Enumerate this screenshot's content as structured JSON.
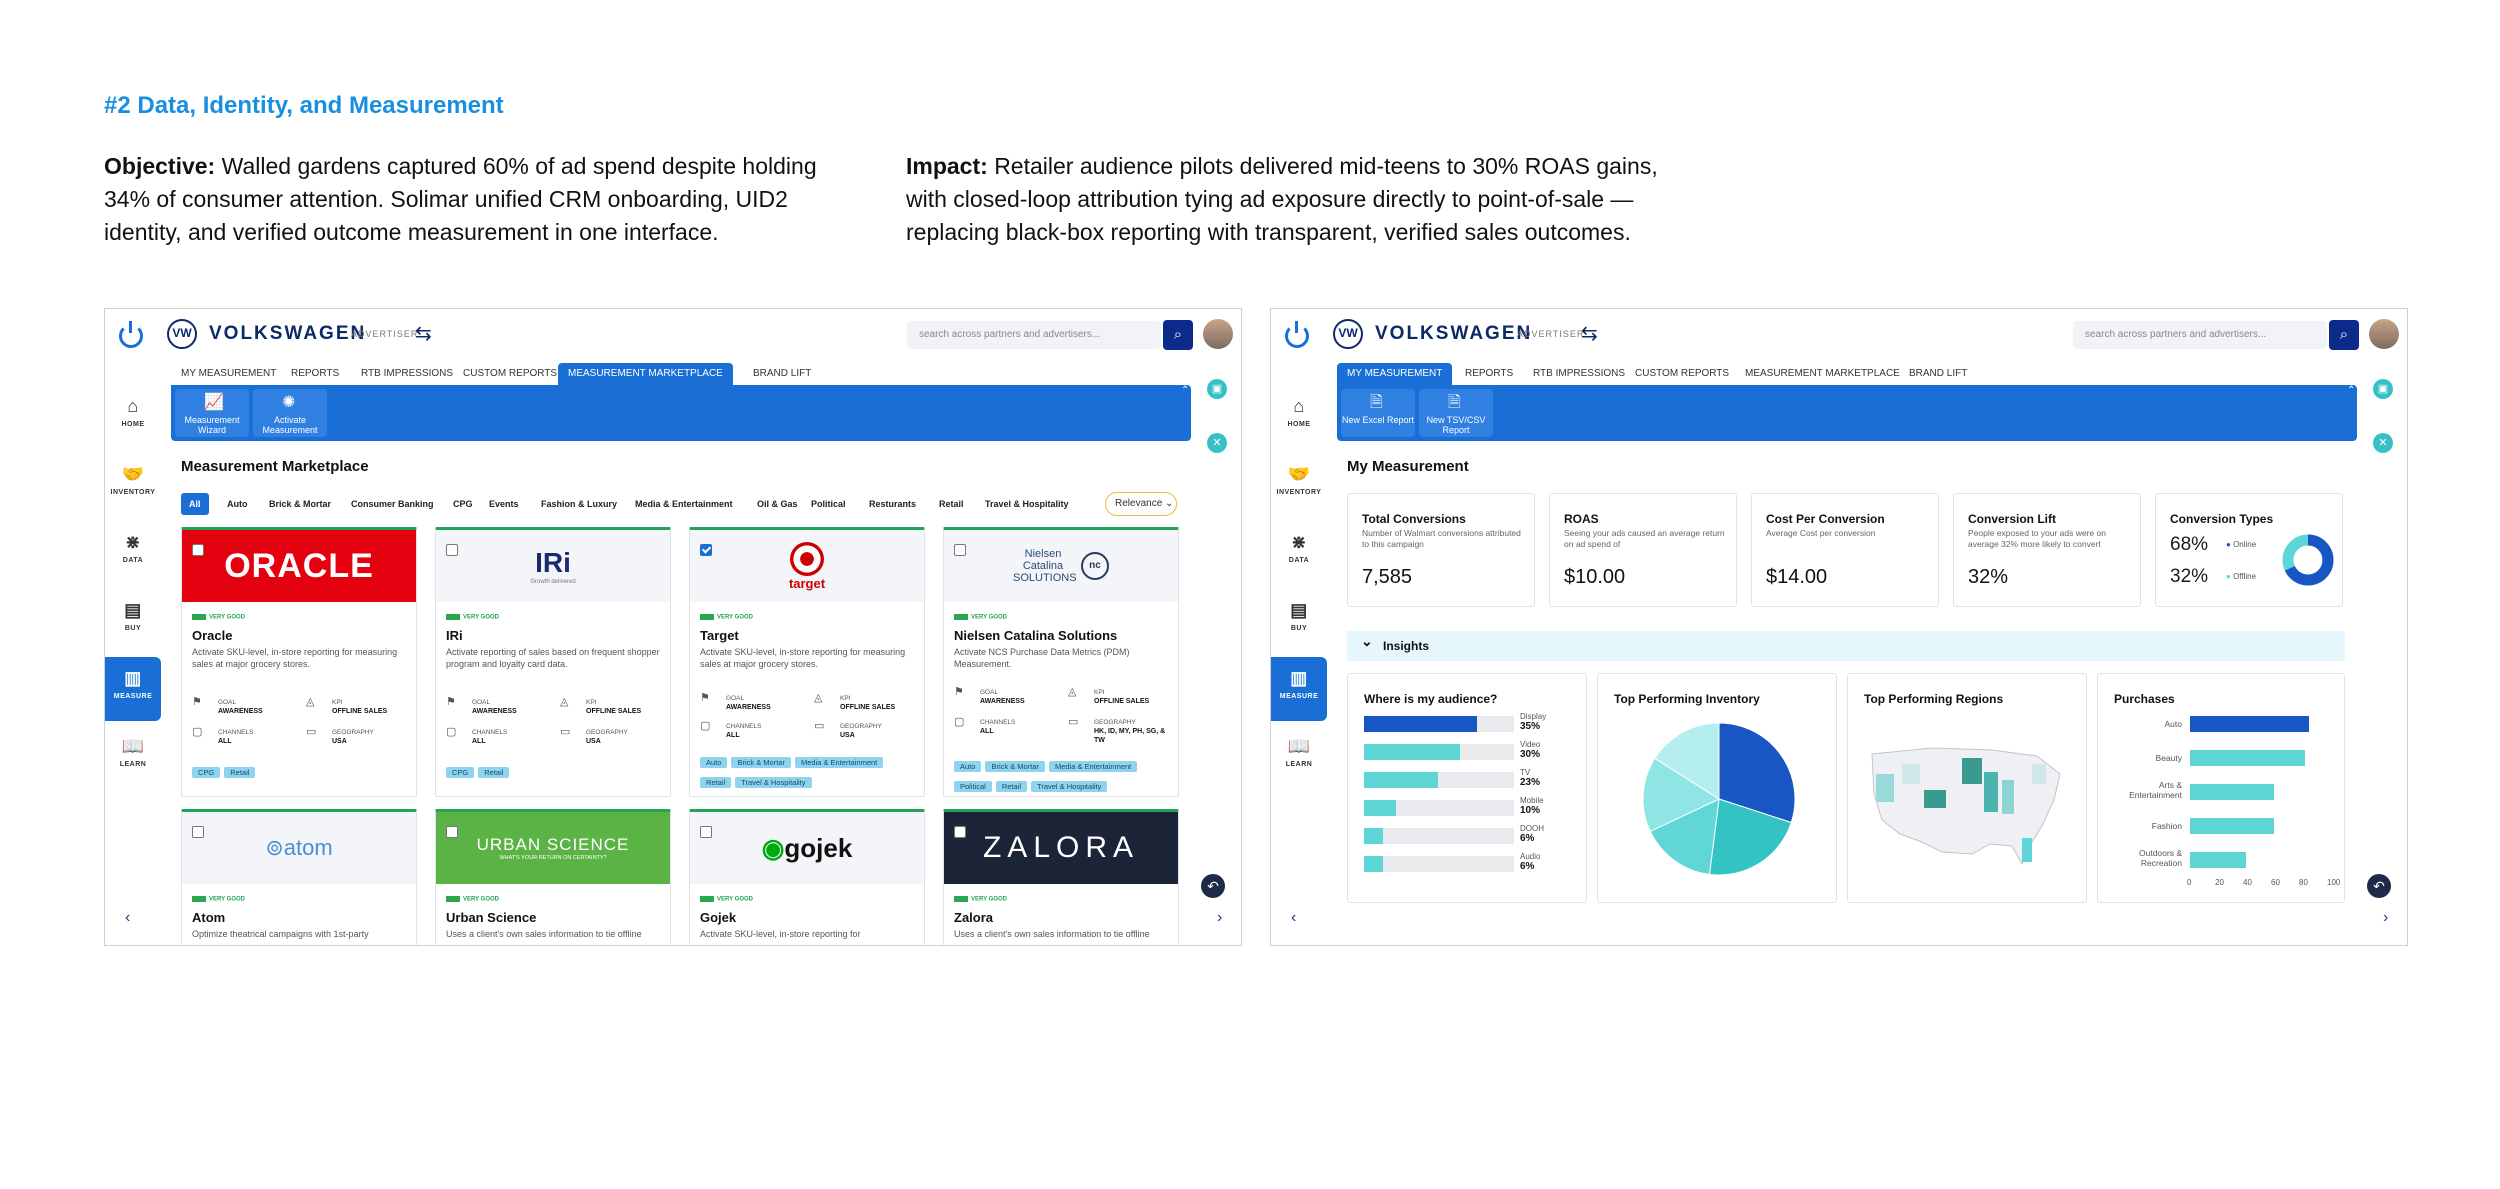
{
  "heading": "#2 Data, Identity, and Measurement",
  "objective": {
    "label": "Objective:",
    "text": "Walled gardens captured 60% of ad spend despite holding 34% of consumer attention. Solimar unified CRM onboarding, UID2 identity, and verified outcome measurement in one interface."
  },
  "impact": {
    "label": "Impact:",
    "text": "Retailer audience pilots delivered mid-teens to 30% ROAS gains, with closed-loop attribution tying ad exposure directly to point-of-sale — replacing black-box reporting with transparent, verified sales outcomes."
  },
  "app": {
    "brand": "VOLKSWAGEN",
    "brand_sub": "ADVERTISER",
    "logo_text": "VW",
    "search_placeholder": "search across partners and advertisers...",
    "tabs": [
      "MY MEASUREMENT",
      "REPORTS",
      "RTB IMPRESSIONS",
      "CUSTOM REPORTS",
      "MEASUREMENT MARKETPLACE",
      "BRAND LIFT"
    ],
    "nav": [
      "HOME",
      "INVENTORY",
      "DATA",
      "BUY",
      "MEASURE",
      "LEARN"
    ]
  },
  "left": {
    "active_tab": "MEASUREMENT MARKETPLACE",
    "toolbar": [
      {
        "label": "Measurement Wizard",
        "icon": "chart-icon"
      },
      {
        "label": "Activate Measurement",
        "icon": "spark-icon"
      }
    ],
    "section_title": "Measurement Marketplace",
    "chips": [
      "All",
      "Auto",
      "Brick & Mortar",
      "Consumer Banking",
      "CPG",
      "Events",
      "Fashion & Luxury",
      "Media & Entertainment",
      "Oil & Gas",
      "Political",
      "Resturants",
      "Retail",
      "Travel & Hospitality"
    ],
    "sort": "Relevance",
    "rating_label": "VERY GOOD",
    "cards": [
      {
        "logo": "ORACLE",
        "name": "Oracle",
        "desc": "Activate SKU-level, in-store reporting for measuring sales at major grocery stores.",
        "goal": "AWARENESS",
        "kpi": "OFFLINE SALES",
        "channels": "ALL",
        "geo": "USA",
        "tags": [
          "CPG",
          "Retail"
        ],
        "checked": false
      },
      {
        "logo": "IRi",
        "logo_sub": "Growth delivered",
        "name": "IRi",
        "desc": "Activate reporting of sales based on frequent shopper program and loyalty card data.",
        "goal": "AWARENESS",
        "kpi": "OFFLINE SALES",
        "channels": "ALL",
        "geo": "USA",
        "tags": [
          "CPG",
          "Retail"
        ],
        "checked": false
      },
      {
        "logo": "target",
        "name": "Target",
        "desc": "Activate SKU-level, in-store reporting for measuring sales at major grocery stores.",
        "goal": "AWARENESS",
        "kpi": "OFFLINE SALES",
        "channels": "ALL",
        "geo": "USA",
        "tags": [
          "Auto",
          "Brick & Mortar",
          "Media & Entertainment",
          "Retail",
          "Travel & Hospitality"
        ],
        "checked": true
      },
      {
        "logo": "Nielsen Catalina SOLUTIONS",
        "logo_badge": "nc",
        "name": "Nielsen Catalina Solutions",
        "desc": "Activate NCS Purchase Data Metrics (PDM) Measurement.",
        "goal": "AWARENESS",
        "kpi": "OFFLINE SALES",
        "channels": "ALL",
        "geo": "HK, ID, MY, PH, SG, & TW",
        "tags": [
          "Auto",
          "Brick & Mortar",
          "Media & Entertainment",
          "Political",
          "Retail",
          "Travel & Hospitality"
        ],
        "checked": false
      },
      {
        "logo": "atom",
        "name": "Atom",
        "desc": "Optimize theatrical campaigns with 1st-party",
        "checked": false
      },
      {
        "logo": "URBAN SCIENCE",
        "logo_sub": "WHAT'S YOUR RETURN ON CERTAINTY?",
        "name": "Urban Science",
        "desc": "Uses a client's own sales information to tie offline",
        "checked": false
      },
      {
        "logo": "gojek",
        "name": "Gojek",
        "desc": "Activate SKU-level, in-store reporting for",
        "checked": false
      },
      {
        "logo": "ZALORA",
        "name": "Zalora",
        "desc": "Uses a client's own sales information to tie offline",
        "checked": false
      }
    ],
    "meta_labels": {
      "goal": "GOAL",
      "kpi": "KPI",
      "channels": "CHANNELS",
      "geo": "GEOGRAPHY"
    }
  },
  "right": {
    "active_tab": "MY MEASUREMENT",
    "toolbar": [
      {
        "label": "New Excel Report",
        "icon": "file-icon"
      },
      {
        "label": "New TSV/CSV Report",
        "icon": "file-icon"
      }
    ],
    "section_title": "My Measurement",
    "kpis": [
      {
        "title": "Total Conversions",
        "sub": "Number of Walmart conversions attributed to this campaign",
        "value": "7,585"
      },
      {
        "title": "ROAS",
        "sub": "Seeing your ads caused an average return on ad spend of",
        "value": "$10.00"
      },
      {
        "title": "Cost Per Conversion",
        "sub": "Average Cost per conversion",
        "value": "$14.00"
      },
      {
        "title": "Conversion Lift",
        "sub": "People exposed to your ads were on average 32% more likely to convert",
        "value": "32%"
      }
    ],
    "conversion_types": {
      "title": "Conversion Types",
      "online_value": "68%",
      "online_label": "Online",
      "offline_value": "32%",
      "offline_label": "Offline",
      "online_pct": 68,
      "offline_pct": 32
    },
    "insights_label": "Insights",
    "audience": {
      "title": "Where is my audience?",
      "rows": [
        {
          "label": "Display",
          "value": "35%",
          "pct": 35,
          "color": "#1a55c4"
        },
        {
          "label": "Video",
          "value": "30%",
          "pct": 30,
          "color": "#5fd6d6"
        },
        {
          "label": "TV",
          "value": "23%",
          "pct": 23,
          "color": "#5fd6d6"
        },
        {
          "label": "Mobile",
          "value": "10%",
          "pct": 10,
          "color": "#5fd6d6"
        },
        {
          "label": "DOOH",
          "value": "6%",
          "pct": 6,
          "color": "#5fd6d6"
        },
        {
          "label": "Audio",
          "value": "6%",
          "pct": 6,
          "color": "#5fd6d6"
        }
      ]
    },
    "inventory": {
      "title": "Top Performing Inventory",
      "slices": [
        {
          "pct": 30,
          "color": "#1a55c4"
        },
        {
          "pct": 22,
          "color": "#34c3c3"
        },
        {
          "pct": 16,
          "color": "#60d6d6"
        },
        {
          "pct": 16,
          "color": "#8fe4e4"
        },
        {
          "pct": 16,
          "color": "#b4eeee"
        }
      ]
    },
    "regions": {
      "title": "Top Performing Regions"
    },
    "purchases": {
      "title": "Purchases",
      "rows": [
        {
          "label": "Auto",
          "value": 85,
          "color": "#1a55c4"
        },
        {
          "label": "Beauty",
          "value": 82,
          "color": "#5fd6d6"
        },
        {
          "label": "Arts & Entertainment",
          "value": 60,
          "color": "#5fd6d6"
        },
        {
          "label": "Fashion",
          "value": 60,
          "color": "#5fd6d6"
        },
        {
          "label": "Outdoors & Recreation",
          "value": 40,
          "color": "#5fd6d6"
        }
      ],
      "ticks": [
        "0",
        "20",
        "40",
        "60",
        "80",
        "100"
      ],
      "max": 100
    }
  },
  "colors": {
    "primary": "#1a6fd6",
    "navy": "#0b2a66",
    "accent_teal": "#38c0c8",
    "good_green": "#22a35a"
  }
}
